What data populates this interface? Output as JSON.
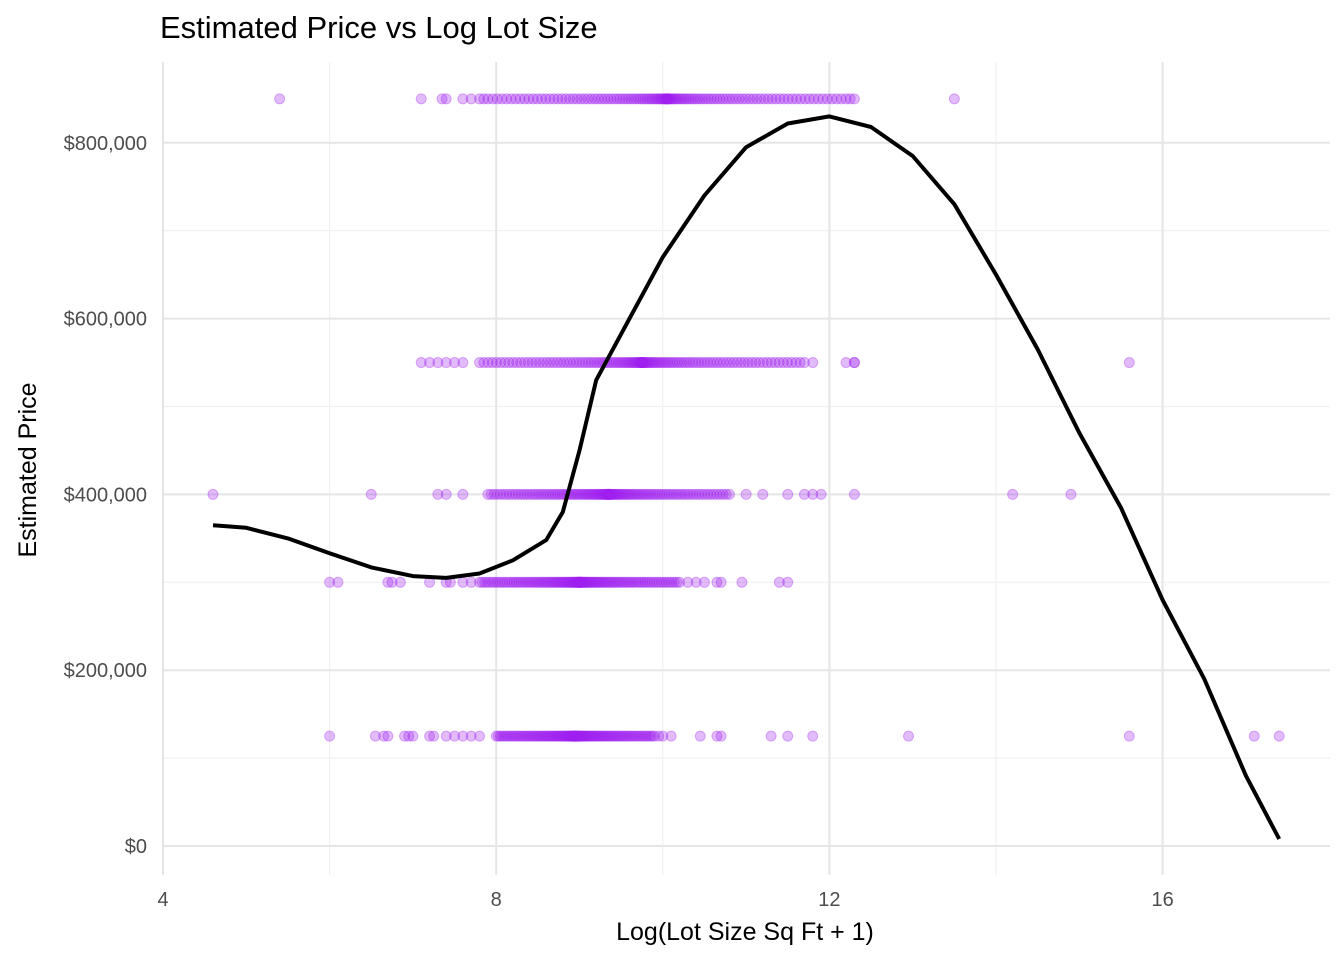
{
  "chart_data": {
    "type": "scatter",
    "title": "Estimated Price vs Log Lot Size",
    "xlabel": "Log(Lot Size Sq Ft + 1)",
    "ylabel": "Estimated Price",
    "xlim": [
      4,
      18
    ],
    "ylim": [
      0,
      870000
    ],
    "x_ticks": [
      4,
      8,
      12,
      16
    ],
    "x_tick_labels": [
      "4",
      "8",
      "12",
      "16"
    ],
    "y_ticks": [
      0,
      200000,
      400000,
      600000,
      800000
    ],
    "y_tick_labels": [
      "$0",
      "$200,000",
      "$400,000",
      "$600,000",
      "$800,000"
    ],
    "grid": true,
    "point_color": "#A020F0",
    "point_alpha": 0.3,
    "line_color": "#000000",
    "price_levels": [
      125000,
      300000,
      400000,
      550000,
      850000
    ],
    "series": [
      {
        "y": 850000,
        "x_range": [
          7.9,
          12.2
        ],
        "x_sparse": [
          5.4,
          7.1,
          7.35,
          7.4,
          7.6,
          7.7,
          7.8,
          7.85,
          12.25,
          12.3,
          13.5
        ]
      },
      {
        "y": 550000,
        "x_range": [
          7.8,
          11.7
        ],
        "x_sparse": [
          7.1,
          7.2,
          7.3,
          7.4,
          7.5,
          7.6,
          11.8,
          12.2,
          12.3,
          12.3,
          15.6
        ]
      },
      {
        "y": 400000,
        "x_range": [
          7.9,
          10.8
        ],
        "x_sparse": [
          4.6,
          6.5,
          7.3,
          7.4,
          7.6,
          11.0,
          11.2,
          11.5,
          11.7,
          11.8,
          11.9,
          12.3,
          14.2,
          14.9
        ]
      },
      {
        "y": 300000,
        "x_range": [
          7.8,
          10.2
        ],
        "x_sparse": [
          6.0,
          6.1,
          6.7,
          6.75,
          6.85,
          7.2,
          7.4,
          7.45,
          7.6,
          7.7,
          10.3,
          10.4,
          10.5,
          10.65,
          10.7,
          10.95,
          11.4,
          11.5
        ]
      },
      {
        "y": 125000,
        "x_range": [
          8.0,
          9.9
        ],
        "x_sparse": [
          6.0,
          6.55,
          6.65,
          6.7,
          6.9,
          6.95,
          7.0,
          7.2,
          7.25,
          7.4,
          7.5,
          7.6,
          7.7,
          7.8,
          9.95,
          10.0,
          10.1,
          10.45,
          10.65,
          10.7,
          11.3,
          11.5,
          11.8,
          12.95,
          15.6,
          17.1,
          17.4
        ]
      }
    ],
    "smooth_curve": {
      "x": [
        4.6,
        5.0,
        5.5,
        6.0,
        6.5,
        7.0,
        7.4,
        7.8,
        8.2,
        8.6,
        8.8,
        9.0,
        9.2,
        9.4,
        9.6,
        10.0,
        10.5,
        11.0,
        11.5,
        12.0,
        12.5,
        13.0,
        13.5,
        14.0,
        14.5,
        15.0,
        15.5,
        16.0,
        16.5,
        17.0,
        17.4
      ],
      "y": [
        365000,
        362000,
        350000,
        333000,
        317000,
        307000,
        305000,
        310000,
        325000,
        348000,
        380000,
        450000,
        530000,
        565000,
        600000,
        670000,
        740000,
        795000,
        822000,
        830000,
        818000,
        785000,
        730000,
        650000,
        565000,
        470000,
        385000,
        280000,
        190000,
        80000,
        8000
      ]
    }
  }
}
